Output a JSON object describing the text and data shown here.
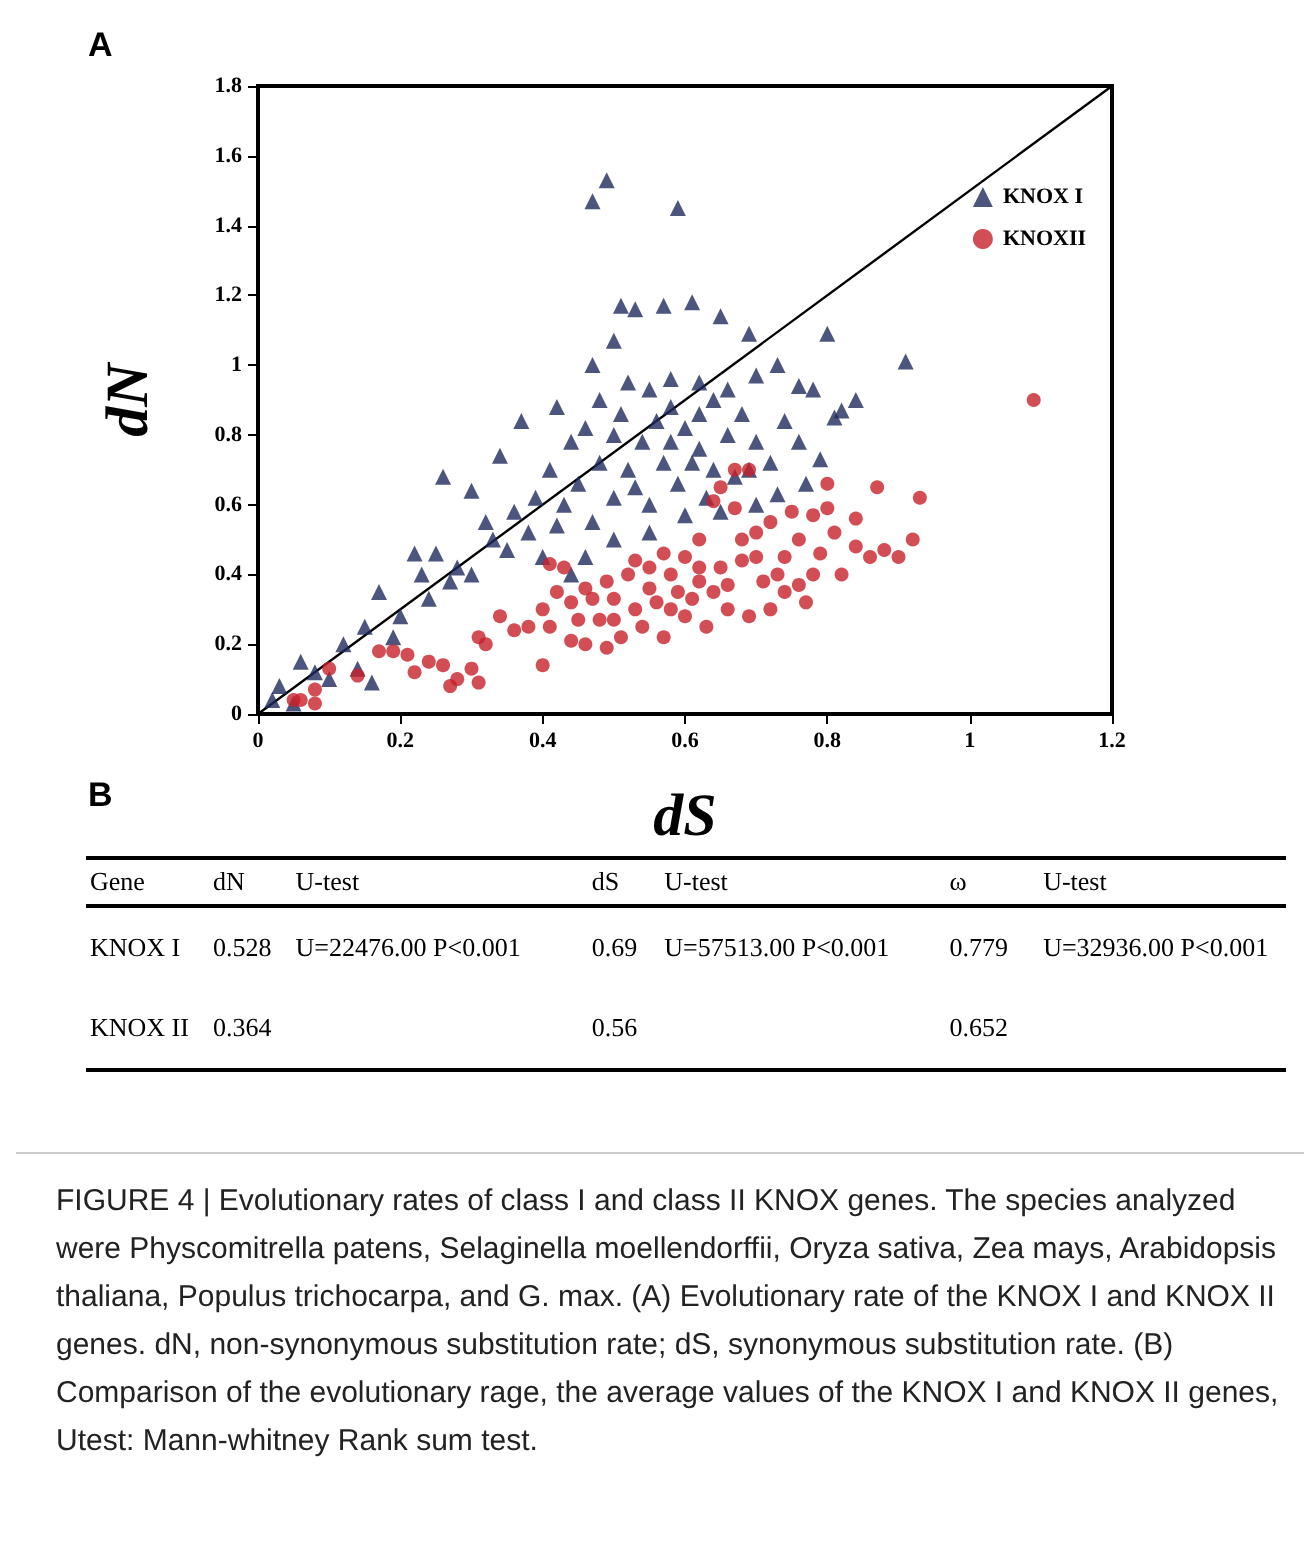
{
  "chart_data": [
    {
      "type": "scatter",
      "xlabel": "dS",
      "ylabel": "dN",
      "annotations": [
        "A"
      ],
      "xlim": [
        0,
        1.2
      ],
      "xticks": [
        0,
        0.2,
        0.4,
        0.6,
        0.8,
        1,
        1.2
      ],
      "ylim": [
        0,
        1.8
      ],
      "yticks": [
        0,
        0.2,
        0.4,
        0.6,
        0.8,
        1,
        1.2,
        1.4,
        1.6,
        1.8
      ],
      "grid": false,
      "legend": "top right",
      "series": [
        {
          "name": "KNOX I",
          "color": "#1f2a5c",
          "marker": "triangle",
          "x": [
            0.47,
            0.49,
            0.59,
            0.51,
            0.53,
            0.57,
            0.61,
            0.65,
            0.69,
            0.8,
            0.91,
            0.84,
            0.82,
            0.5,
            0.47,
            0.42,
            0.37,
            0.34,
            0.26,
            0.3,
            0.25,
            0.17,
            0.15,
            0.12,
            0.06,
            0.03,
            0.02,
            0.16,
            0.2,
            0.23,
            0.28,
            0.32,
            0.35,
            0.38,
            0.4,
            0.43,
            0.41,
            0.44,
            0.46,
            0.48,
            0.52,
            0.55,
            0.58,
            0.62,
            0.66,
            0.7,
            0.73,
            0.76,
            0.78,
            0.81,
            0.79,
            0.77,
            0.73,
            0.7,
            0.65,
            0.6,
            0.55,
            0.5,
            0.46,
            0.44,
            0.47,
            0.5,
            0.52,
            0.54,
            0.56,
            0.58,
            0.6,
            0.62,
            0.64,
            0.66,
            0.68,
            0.7,
            0.72,
            0.74,
            0.76,
            0.48,
            0.5,
            0.53,
            0.57,
            0.59,
            0.61,
            0.63,
            0.67,
            0.69,
            0.55,
            0.58,
            0.62,
            0.64,
            0.51,
            0.45,
            0.42,
            0.39,
            0.36,
            0.33,
            0.3,
            0.27,
            0.24,
            0.22,
            0.19,
            0.14,
            0.1,
            0.08,
            0.05
          ],
          "values": [
            1.47,
            1.53,
            1.45,
            1.17,
            1.16,
            1.17,
            1.18,
            1.14,
            1.09,
            1.09,
            1.01,
            0.9,
            0.87,
            1.07,
            1.0,
            0.88,
            0.84,
            0.74,
            0.68,
            0.64,
            0.46,
            0.35,
            0.25,
            0.2,
            0.15,
            0.08,
            0.04,
            0.09,
            0.28,
            0.4,
            0.42,
            0.55,
            0.47,
            0.52,
            0.45,
            0.6,
            0.7,
            0.78,
            0.82,
            0.9,
            0.95,
            0.93,
            0.96,
            0.95,
            0.93,
            0.97,
            1.0,
            0.94,
            0.93,
            0.85,
            0.73,
            0.66,
            0.63,
            0.6,
            0.58,
            0.57,
            0.52,
            0.5,
            0.45,
            0.4,
            0.55,
            0.62,
            0.7,
            0.78,
            0.84,
            0.88,
            0.82,
            0.76,
            0.7,
            0.8,
            0.86,
            0.78,
            0.72,
            0.84,
            0.78,
            0.72,
            0.8,
            0.65,
            0.72,
            0.66,
            0.72,
            0.62,
            0.68,
            0.7,
            0.6,
            0.78,
            0.86,
            0.9,
            0.86,
            0.66,
            0.54,
            0.62,
            0.58,
            0.5,
            0.4,
            0.38,
            0.33,
            0.46,
            0.22,
            0.13,
            0.1,
            0.12,
            0.03
          ]
        },
        {
          "name": "KNOXII",
          "color": "#c8202a",
          "marker": "circle",
          "x": [
            1.09,
            0.93,
            0.87,
            0.8,
            0.84,
            0.92,
            0.9,
            0.88,
            0.86,
            0.82,
            0.78,
            0.76,
            0.73,
            0.7,
            0.72,
            0.75,
            0.78,
            0.8,
            0.69,
            0.67,
            0.65,
            0.64,
            0.67,
            0.62,
            0.6,
            0.58,
            0.55,
            0.52,
            0.49,
            0.46,
            0.44,
            0.42,
            0.4,
            0.41,
            0.4,
            0.44,
            0.46,
            0.49,
            0.5,
            0.53,
            0.56,
            0.59,
            0.62,
            0.65,
            0.68,
            0.71,
            0.74,
            0.77,
            0.72,
            0.69,
            0.66,
            0.63,
            0.6,
            0.57,
            0.54,
            0.51,
            0.48,
            0.45,
            0.47,
            0.5,
            0.55,
            0.58,
            0.61,
            0.64,
            0.66,
            0.68,
            0.7,
            0.74,
            0.76,
            0.79,
            0.81,
            0.84,
            0.62,
            0.57,
            0.53,
            0.43,
            0.41,
            0.38,
            0.36,
            0.34,
            0.31,
            0.32,
            0.3,
            0.28,
            0.26,
            0.24,
            0.22,
            0.21,
            0.19,
            0.17,
            0.14,
            0.1,
            0.08,
            0.08,
            0.06,
            0.05,
            0.31,
            0.27
          ],
          "values": [
            0.9,
            0.62,
            0.65,
            0.66,
            0.56,
            0.5,
            0.45,
            0.47,
            0.45,
            0.4,
            0.4,
            0.37,
            0.4,
            0.45,
            0.55,
            0.58,
            0.57,
            0.59,
            0.7,
            0.7,
            0.65,
            0.61,
            0.59,
            0.5,
            0.45,
            0.4,
            0.42,
            0.4,
            0.38,
            0.36,
            0.32,
            0.35,
            0.3,
            0.25,
            0.14,
            0.21,
            0.2,
            0.19,
            0.27,
            0.3,
            0.32,
            0.35,
            0.38,
            0.42,
            0.44,
            0.38,
            0.35,
            0.32,
            0.3,
            0.28,
            0.3,
            0.25,
            0.28,
            0.22,
            0.25,
            0.22,
            0.27,
            0.27,
            0.33,
            0.33,
            0.36,
            0.3,
            0.33,
            0.35,
            0.37,
            0.5,
            0.52,
            0.45,
            0.5,
            0.46,
            0.52,
            0.48,
            0.42,
            0.46,
            0.44,
            0.42,
            0.43,
            0.25,
            0.24,
            0.28,
            0.22,
            0.2,
            0.13,
            0.1,
            0.14,
            0.15,
            0.12,
            0.17,
            0.18,
            0.18,
            0.11,
            0.13,
            0.07,
            0.03,
            0.04,
            0.04,
            0.09,
            0.08
          ]
        },
        {
          "type": "line",
          "color": "#000000",
          "marker": "none",
          "x": [
            0,
            1.2
          ],
          "values": [
            0,
            1.8
          ]
        }
      ]
    },
    {
      "type": "other",
      "annotations": [
        "B",
        "Gene\tdN\tU-test\tdS\tU-test\tω\tU-test",
        "KNOX I\t0.528\tU=22476.00 P<0.001\t0.69\tU=57513.00 P<0.001\t0.779\tU=32936.00 P<0.001",
        "KNOX II\t0.364\t\t0.56\t\t0.652\t",
        "FIGURE 4 | Evolutionary rates of class I and class II KNOX genes. The species analyzed were Physcomitrella patens, Selaginella moellendorffii, Oryza sativa, Zea mays, Arabidopsis thaliana, Populus trichocarpa, and G. max. (A) Evolutionary rate of the KNOX I and KNOX II genes. dN, non-synonymous substitution rate; dS, synonymous substitution rate. (B) Comparison of the evolutionary rage, the average values of the KNOX I and KNOX II genes, Utest: Mann-whitney Rank sum test."
      ]
    }
  ]
}
